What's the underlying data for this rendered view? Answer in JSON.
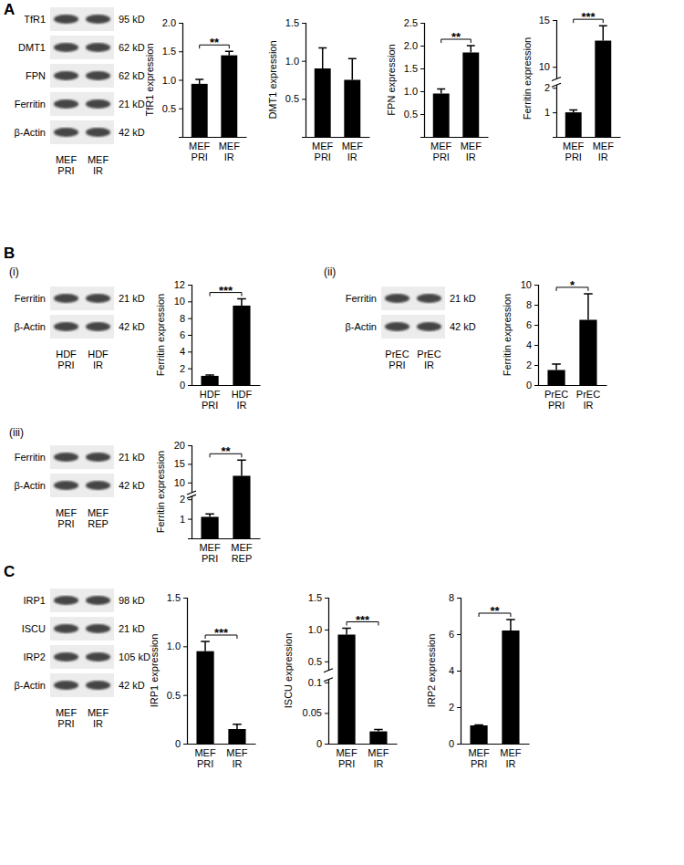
{
  "panel_labels": [
    "A",
    "B",
    "(i)",
    "(ii)",
    "(iii)",
    "C"
  ],
  "blots": [
    {
      "lanes": [
        "MEF PRI",
        "MEF IR"
      ],
      "rows": [
        {
          "label": "TfR1",
          "kd": "95 kD"
        },
        {
          "label": "DMT1",
          "kd": "62 kD"
        },
        {
          "label": "FPN",
          "kd": "62 kD"
        },
        {
          "label": "Ferritin",
          "kd": "21 kD"
        },
        {
          "label": "β-Actin",
          "kd": "42 kD"
        }
      ]
    },
    {
      "lanes": [
        "HDF PRI",
        "HDF IR"
      ],
      "rows": [
        {
          "label": "Ferritin",
          "kd": "21 kD"
        },
        {
          "label": "β-Actin",
          "kd": "42 kD"
        }
      ]
    },
    {
      "lanes": [
        "PrEC PRI",
        "PrEC IR"
      ],
      "rows": [
        {
          "label": "Ferritin",
          "kd": "21 kD"
        },
        {
          "label": "β-Actin",
          "kd": "42 kD"
        }
      ]
    },
    {
      "lanes": [
        "MEF PRI",
        "MEF REP"
      ],
      "rows": [
        {
          "label": "Ferritin",
          "kd": "21 kD"
        },
        {
          "label": "β-Actin",
          "kd": "42 kD"
        }
      ]
    },
    {
      "lanes": [
        "MEF PRI",
        "MEF IR"
      ],
      "rows": [
        {
          "label": "IRP1",
          "kd": "98 kD"
        },
        {
          "label": "ISCU",
          "kd": "21 kD"
        },
        {
          "label": "IRP2",
          "kd": "105 kD"
        },
        {
          "label": "β-Actin",
          "kd": "42 kD"
        }
      ]
    }
  ],
  "chart_data": [
    {
      "type": "bar",
      "categories": [
        "MEF PRI",
        "MEF IR"
      ],
      "values": [
        0.93,
        1.43
      ],
      "errors": [
        0.08,
        0.07
      ],
      "color": "#000000",
      "ylabel": "TfR1 expression",
      "ylim": [
        0,
        2
      ],
      "yticks": [
        0.5,
        {
          "value": 1,
          "label": "1.0"
        },
        1.5,
        {
          "value": 2,
          "label": "2.0"
        }
      ],
      "annotations": [
        "**"
      ]
    },
    {
      "type": "bar",
      "categories": [
        "MEF PRI",
        "MEF IR"
      ],
      "values": [
        0.9,
        0.75
      ],
      "errors": [
        0.27,
        0.28
      ],
      "color": "#000000",
      "ylabel": "DMT1 expression",
      "ylim": [
        0,
        1.5
      ],
      "yticks": [
        0.5,
        {
          "value": 1,
          "label": "1.0"
        },
        1.5
      ]
    },
    {
      "type": "bar",
      "categories": [
        "MEF PRI",
        "MEF IR"
      ],
      "values": [
        0.95,
        1.85
      ],
      "errors": [
        0.1,
        0.15
      ],
      "color": "#000000",
      "ylabel": "FPN expression",
      "ylim": [
        0,
        2.5
      ],
      "yticks": [
        0.5,
        {
          "value": 1,
          "label": "1.0"
        },
        1.5,
        {
          "value": 2,
          "label": "2.0"
        },
        2.5
      ],
      "annotations": [
        "**"
      ]
    },
    {
      "type": "bar",
      "categories": [
        "MEF PRI",
        "MEF IR"
      ],
      "values": [
        1.0,
        12.8
      ],
      "errors": [
        0.1,
        1.6
      ],
      "color": "#000000",
      "ylabel": "Ferritin expression",
      "ylim": [
        0,
        15
      ],
      "ybreak": [
        2,
        9
      ],
      "yticks": [
        1,
        2,
        10,
        15
      ],
      "annotations": [
        "***"
      ]
    },
    {
      "type": "bar",
      "categories": [
        "HDF PRI",
        "HDF IR"
      ],
      "values": [
        1.1,
        9.5
      ],
      "errors": [
        0.1,
        0.8
      ],
      "color": "#000000",
      "ylabel": "Ferritin expression",
      "ylim": [
        0,
        12
      ],
      "yticks": [
        0,
        2,
        4,
        6,
        8,
        10,
        12
      ],
      "annotations": [
        "***"
      ]
    },
    {
      "type": "bar",
      "categories": [
        "PrEC PRI",
        "PrEC IR"
      ],
      "values": [
        1.5,
        6.5
      ],
      "errors": [
        0.6,
        2.6
      ],
      "color": "#000000",
      "ylabel": "Ferritin expression",
      "ylim": [
        0,
        10
      ],
      "yticks": [
        0,
        2,
        4,
        6,
        8,
        10
      ],
      "annotations": [
        "*"
      ]
    },
    {
      "type": "bar",
      "categories": [
        "MEF PRI",
        "MEF REP"
      ],
      "values": [
        1.1,
        11.8
      ],
      "errors": [
        0.15,
        4.2
      ],
      "color": "#000000",
      "ylabel": "Ferritin expression",
      "ylim": [
        0,
        20
      ],
      "ybreak": [
        2,
        8
      ],
      "yticks": [
        1,
        2,
        10,
        15,
        20
      ],
      "annotations": [
        "**"
      ]
    },
    {
      "type": "bar",
      "categories": [
        "MEF PRI",
        "MEF IR"
      ],
      "values": [
        0.95,
        0.15
      ],
      "errors": [
        0.1,
        0.05
      ],
      "color": "#000000",
      "ylabel": "IRP1 expression",
      "ylim": [
        0,
        1.5
      ],
      "yticks": [
        0,
        0.5,
        {
          "value": 1,
          "label": "1.0"
        },
        1.5
      ],
      "annotations": [
        "***"
      ]
    },
    {
      "type": "bar",
      "categories": [
        "MEF PRI",
        "MEF IR"
      ],
      "values": [
        0.92,
        0.02
      ],
      "errors": [
        0.1,
        0.003
      ],
      "color": "#000000",
      "ylabel": "ISCU expression",
      "ylim": [
        0,
        1.5
      ],
      "ybreak": [
        0.1,
        0.4
      ],
      "yticks": [
        0,
        0.05,
        0.1,
        0.5,
        {
          "value": 1,
          "label": "1.0"
        },
        1.5
      ],
      "annotations": [
        "***"
      ]
    },
    {
      "type": "bar",
      "categories": [
        "MEF PRI",
        "MEF IR"
      ],
      "values": [
        1.0,
        6.2
      ],
      "errors": [
        0.02,
        0.6
      ],
      "color": "#000000",
      "ylabel": "IRP2 expression",
      "ylim": [
        0,
        8
      ],
      "yticks": [
        0,
        2,
        4,
        6,
        8
      ],
      "annotations": [
        "**"
      ]
    }
  ]
}
